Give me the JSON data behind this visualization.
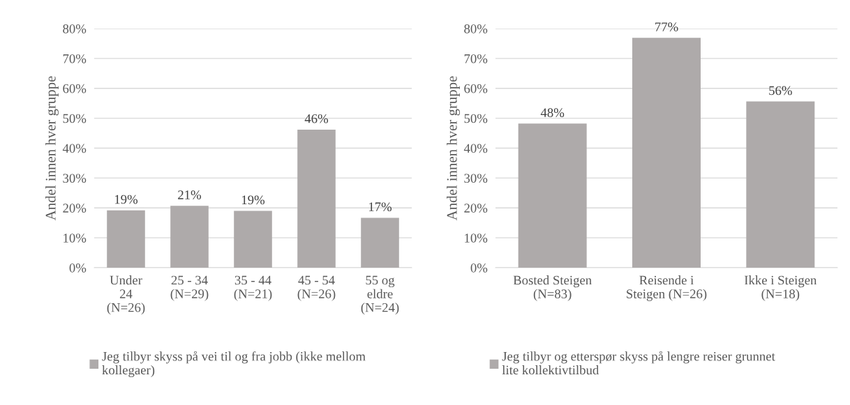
{
  "chart_data": [
    {
      "type": "bar",
      "ylabel": "Andel innen hver gruppe",
      "categories": [
        "Under\n24\n(N=26)",
        "25 - 34\n(N=29)",
        "35 - 44\n(N=21)",
        "45 - 54\n(N=26)",
        "55 og\neldre\n(N=24)"
      ],
      "series": [
        {
          "name": "Jeg tilbyr skyss på vei til og fra jobb (ikke mellom\nkollegaer)",
          "color": "#aeaaaa",
          "values": [
            19.2,
            20.7,
            19.0,
            46.2,
            16.7
          ],
          "value_labels": [
            "19%",
            "21%",
            "19%",
            "46%",
            "17%"
          ]
        }
      ],
      "ylim": [
        0,
        80
      ],
      "yticks": [
        {
          "value": 0,
          "label": "0%"
        },
        {
          "value": 10,
          "label": "10%"
        },
        {
          "value": 20,
          "label": "20%"
        },
        {
          "value": 30,
          "label": "30%"
        },
        {
          "value": 40,
          "label": "40%"
        },
        {
          "value": 50,
          "label": "50%"
        },
        {
          "value": 60,
          "label": "60%"
        },
        {
          "value": 70,
          "label": "70%"
        },
        {
          "value": 80,
          "label": "80%"
        }
      ],
      "grid": "y",
      "legend": "bottom"
    },
    {
      "type": "bar",
      "ylabel": "Andel innen hver gruppe",
      "categories": [
        "Bosted Steigen\n(N=83)",
        "Reisende i\nSteigen (N=26)",
        "Ikke i Steigen\n(N=18)"
      ],
      "series": [
        {
          "name": "Jeg tilbyr og etterspør skyss på lengre reiser grunnet\nlite kollektivtilbud",
          "color": "#aeaaaa",
          "values": [
            48.2,
            76.9,
            55.6
          ],
          "value_labels": [
            "48%",
            "77%",
            "56%"
          ]
        }
      ],
      "ylim": [
        0,
        80
      ],
      "yticks": [
        {
          "value": 0,
          "label": "0%"
        },
        {
          "value": 10,
          "label": "10%"
        },
        {
          "value": 20,
          "label": "20%"
        },
        {
          "value": 30,
          "label": "30%"
        },
        {
          "value": 40,
          "label": "40%"
        },
        {
          "value": 50,
          "label": "50%"
        },
        {
          "value": 60,
          "label": "60%"
        },
        {
          "value": 70,
          "label": "70%"
        },
        {
          "value": 80,
          "label": "80%"
        }
      ],
      "grid": "y",
      "legend": "bottom"
    }
  ]
}
